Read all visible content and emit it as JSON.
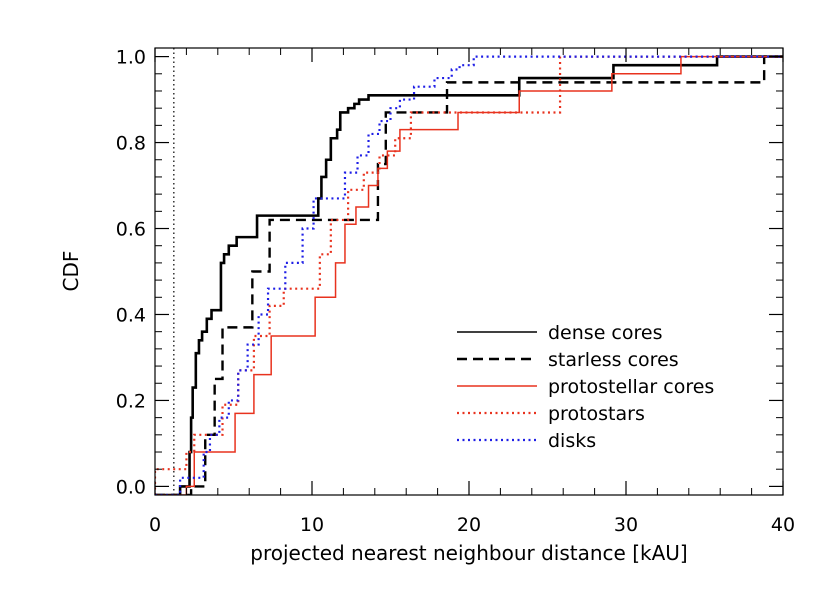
{
  "chart_data": {
    "type": "line",
    "title": "",
    "xlabel": "projected nearest neighbour distance [kAU]",
    "ylabel": "CDF",
    "xlim": [
      0,
      40
    ],
    "ylim": [
      -0.02,
      1.02
    ],
    "xticks": [
      0,
      10,
      20,
      30,
      40
    ],
    "xtick_labels": [
      "0",
      "10",
      "20",
      "30",
      "40"
    ],
    "yticks": [
      0.0,
      0.2,
      0.4,
      0.6,
      0.8,
      1.0
    ],
    "ytick_labels": [
      "0.0",
      "0.2",
      "0.4",
      "0.6",
      "0.8",
      "1.0"
    ],
    "minor_ticks": true,
    "grid": false,
    "legend_position": "lower-right",
    "reference_line": {
      "x": 1.2,
      "style": "dotted",
      "color": "#000000"
    },
    "series": [
      {
        "name": "dense cores",
        "color": "#000000",
        "style": "solid",
        "x": [
          1.6,
          2.2,
          2.3,
          2.4,
          2.6,
          2.8,
          3.0,
          3.3,
          3.6,
          3.8,
          4.2,
          4.4,
          4.7,
          5.2,
          6.2,
          6.5,
          10.2,
          10.4,
          10.6,
          10.9,
          11.2,
          11.6,
          11.8,
          12.3,
          12.7,
          13.0,
          13.6,
          14.1,
          23.2,
          29.2,
          35.8
        ],
        "y": [
          0.0,
          0.08,
          0.16,
          0.23,
          0.31,
          0.34,
          0.36,
          0.39,
          0.41,
          0.41,
          0.52,
          0.54,
          0.56,
          0.58,
          0.58,
          0.63,
          0.63,
          0.67,
          0.72,
          0.76,
          0.81,
          0.83,
          0.87,
          0.88,
          0.89,
          0.9,
          0.91,
          0.91,
          0.95,
          0.98,
          1.0
        ]
      },
      {
        "name": "starless cores",
        "color": "#000000",
        "style": "dashed",
        "x": [
          2.3,
          3.2,
          3.8,
          4.3,
          6.2,
          7.3,
          14.2,
          14.7,
          15.7,
          18.6,
          23.4,
          38.8
        ],
        "y": [
          0.0,
          0.12,
          0.25,
          0.37,
          0.5,
          0.62,
          0.75,
          0.87,
          0.87,
          0.94,
          0.94,
          1.0
        ]
      },
      {
        "name": "protostellar cores",
        "color": "#e8321e",
        "style": "solid",
        "x": [
          2.0,
          2.5,
          5.1,
          6.3,
          7.4,
          10.2,
          11.5,
          12.1,
          12.8,
          13.6,
          14.2,
          14.8,
          15.6,
          19.3,
          23.2,
          29.1,
          33.5
        ],
        "y": [
          0.0,
          0.08,
          0.17,
          0.26,
          0.35,
          0.44,
          0.52,
          0.61,
          0.65,
          0.7,
          0.74,
          0.78,
          0.83,
          0.87,
          0.92,
          0.96,
          1.0
        ]
      },
      {
        "name": "protostars",
        "color": "#e8321e",
        "style": "dotted",
        "x": [
          0.0,
          2.0,
          2.5,
          4.3,
          5.3,
          6.3,
          7.3,
          8.2,
          10.5,
          11.2,
          12.3,
          13.3,
          14.3,
          15.3,
          16.3,
          25.8
        ],
        "y": [
          0.04,
          0.08,
          0.12,
          0.19,
          0.27,
          0.35,
          0.42,
          0.46,
          0.54,
          0.62,
          0.69,
          0.73,
          0.77,
          0.81,
          0.87,
          1.0
        ]
      },
      {
        "name": "disks",
        "color": "#1e1ee6",
        "style": "dotted",
        "x": [
          1.6,
          3.1,
          3.5,
          4.1,
          4.7,
          5.3,
          5.9,
          6.6,
          7.2,
          8.3,
          9.4,
          10.1,
          12.1,
          12.9,
          13.6,
          14.3,
          15.0,
          15.6,
          16.5,
          17.8,
          18.9,
          19.4,
          20.3
        ],
        "y": [
          0.02,
          0.08,
          0.12,
          0.16,
          0.2,
          0.27,
          0.33,
          0.4,
          0.46,
          0.52,
          0.6,
          0.67,
          0.73,
          0.77,
          0.82,
          0.85,
          0.88,
          0.9,
          0.93,
          0.95,
          0.97,
          0.98,
          1.0
        ]
      }
    ]
  }
}
